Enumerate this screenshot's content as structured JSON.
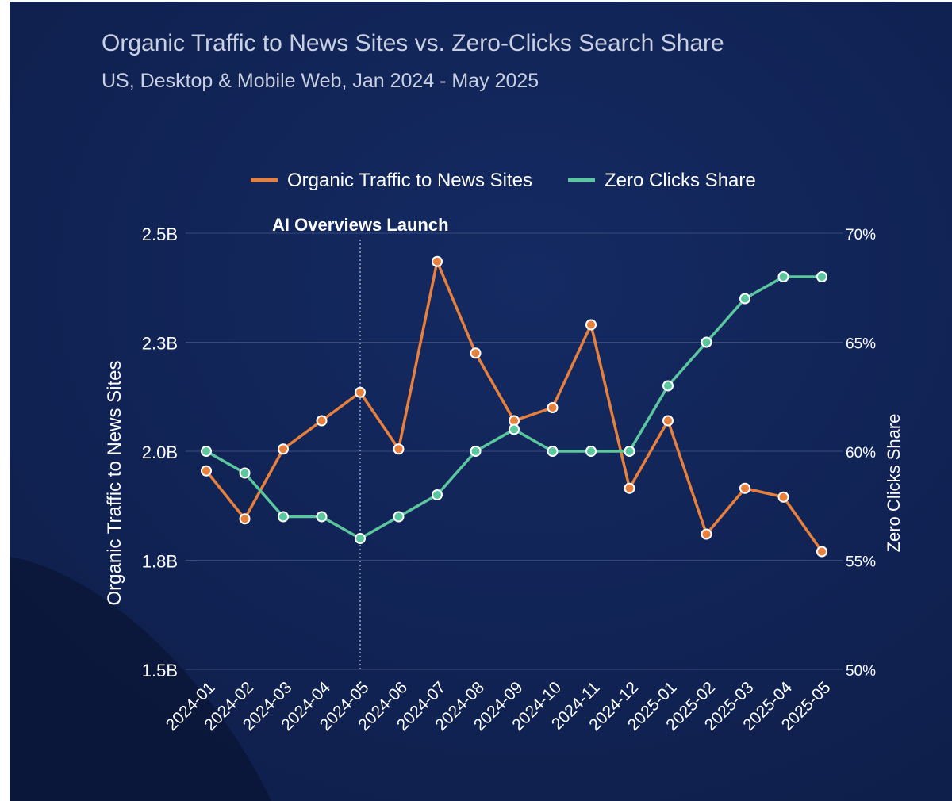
{
  "header": {
    "title": "Organic Traffic to News Sites vs. Zero-Clicks Search Share",
    "subtitle": "US, Desktop & Mobile Web, Jan 2024 - May 2025"
  },
  "colors": {
    "background": "#10204f",
    "organic": "#e8803d",
    "zero_clicks": "#5cc79e",
    "text": "#ffffff",
    "grid": "#3a4a7a"
  },
  "chart_data": {
    "type": "line",
    "categories": [
      "2024-01",
      "2024-02",
      "2024-03",
      "2024-04",
      "2024-05",
      "2024-06",
      "2024-07",
      "2024-08",
      "2024-09",
      "2024-10",
      "2024-11",
      "2024-12",
      "2025-01",
      "2025-02",
      "2025-03",
      "2025-04",
      "2025-05"
    ],
    "series": [
      {
        "name": "Organic Traffic to News Sites",
        "axis": "left",
        "color": "#e8803d",
        "values": [
          1.955,
          1.845,
          2.005,
          2.07,
          2.135,
          2.005,
          2.435,
          2.225,
          2.07,
          2.1,
          2.29,
          1.915,
          2.07,
          1.81,
          1.915,
          1.895,
          1.77
        ]
      },
      {
        "name": "Zero Clicks Share",
        "axis": "right",
        "color": "#5cc79e",
        "values": [
          60,
          59,
          57,
          57,
          56,
          57,
          58,
          60,
          61,
          60,
          60,
          60,
          63,
          65,
          67,
          68,
          68
        ]
      }
    ],
    "y_left": {
      "label": "Organic Traffic to News Sites",
      "range": [
        1.5,
        2.5
      ],
      "ticks": [
        1.5,
        1.75,
        2.0,
        2.25,
        2.5
      ],
      "tick_labels": [
        "1.5B",
        "1.8B",
        "2.0B",
        "2.3B",
        "2.5B"
      ]
    },
    "y_right": {
      "label": "Zero Clicks Share",
      "range": [
        50,
        70
      ],
      "ticks": [
        50,
        55,
        60,
        65,
        70
      ],
      "tick_labels": [
        "50%",
        "55%",
        "60%",
        "65%",
        "70%"
      ]
    },
    "annotation": {
      "label": "AI Overviews Launch",
      "x": "2024-05"
    },
    "legend": "top-center",
    "grid": true
  }
}
